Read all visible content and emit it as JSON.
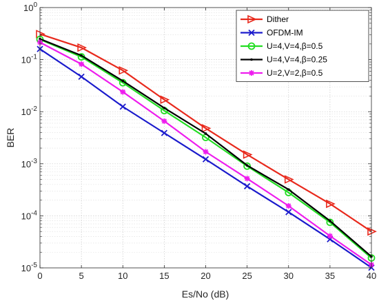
{
  "chart_data": {
    "type": "line",
    "x": [
      0,
      5,
      10,
      15,
      20,
      25,
      30,
      35,
      40
    ],
    "xlabel": "Es/No (dB)",
    "ylabel": "BER",
    "xlim": [
      0,
      40
    ],
    "ylim": [
      1e-05,
      1
    ],
    "y_scale": "log",
    "grid": true,
    "legend_position": "top-right",
    "x_ticks": [
      "0",
      "5",
      "10",
      "15",
      "20",
      "25",
      "30",
      "35",
      "40"
    ],
    "series": [
      {
        "name": "Dither",
        "color": "#e8291c",
        "marker": "triangle-right",
        "values": [
          0.31,
          0.17,
          0.062,
          0.017,
          0.0048,
          0.0015,
          0.0005,
          0.00017,
          5e-05
        ]
      },
      {
        "name": "OFDM-IM",
        "color": "#1a1acc",
        "marker": "x",
        "values": [
          0.16,
          0.047,
          0.0125,
          0.0039,
          0.00122,
          0.00037,
          0.000118,
          3.55e-05,
          1.01e-05
        ]
      },
      {
        "name": "U=4,V=4,β=0.5",
        "color": "#22dd22",
        "marker": "circle",
        "values": [
          0.245,
          0.113,
          0.036,
          0.0105,
          0.0032,
          0.0009,
          0.00028,
          7.5e-05,
          1.55e-05
        ]
      },
      {
        "name": "U=4,V=4,β=0.25",
        "color": "#000000",
        "marker": "dot",
        "values": [
          0.25,
          0.12,
          0.039,
          0.0118,
          0.0038,
          0.00093,
          0.00032,
          8e-05,
          1.65e-05
        ]
      },
      {
        "name": "U=2,V=2,β=0.5",
        "color": "#ee1cee",
        "marker": "asterisk",
        "values": [
          0.215,
          0.082,
          0.024,
          0.0066,
          0.0017,
          0.00052,
          0.000155,
          4.1e-05,
          1.15e-05
        ]
      }
    ]
  }
}
